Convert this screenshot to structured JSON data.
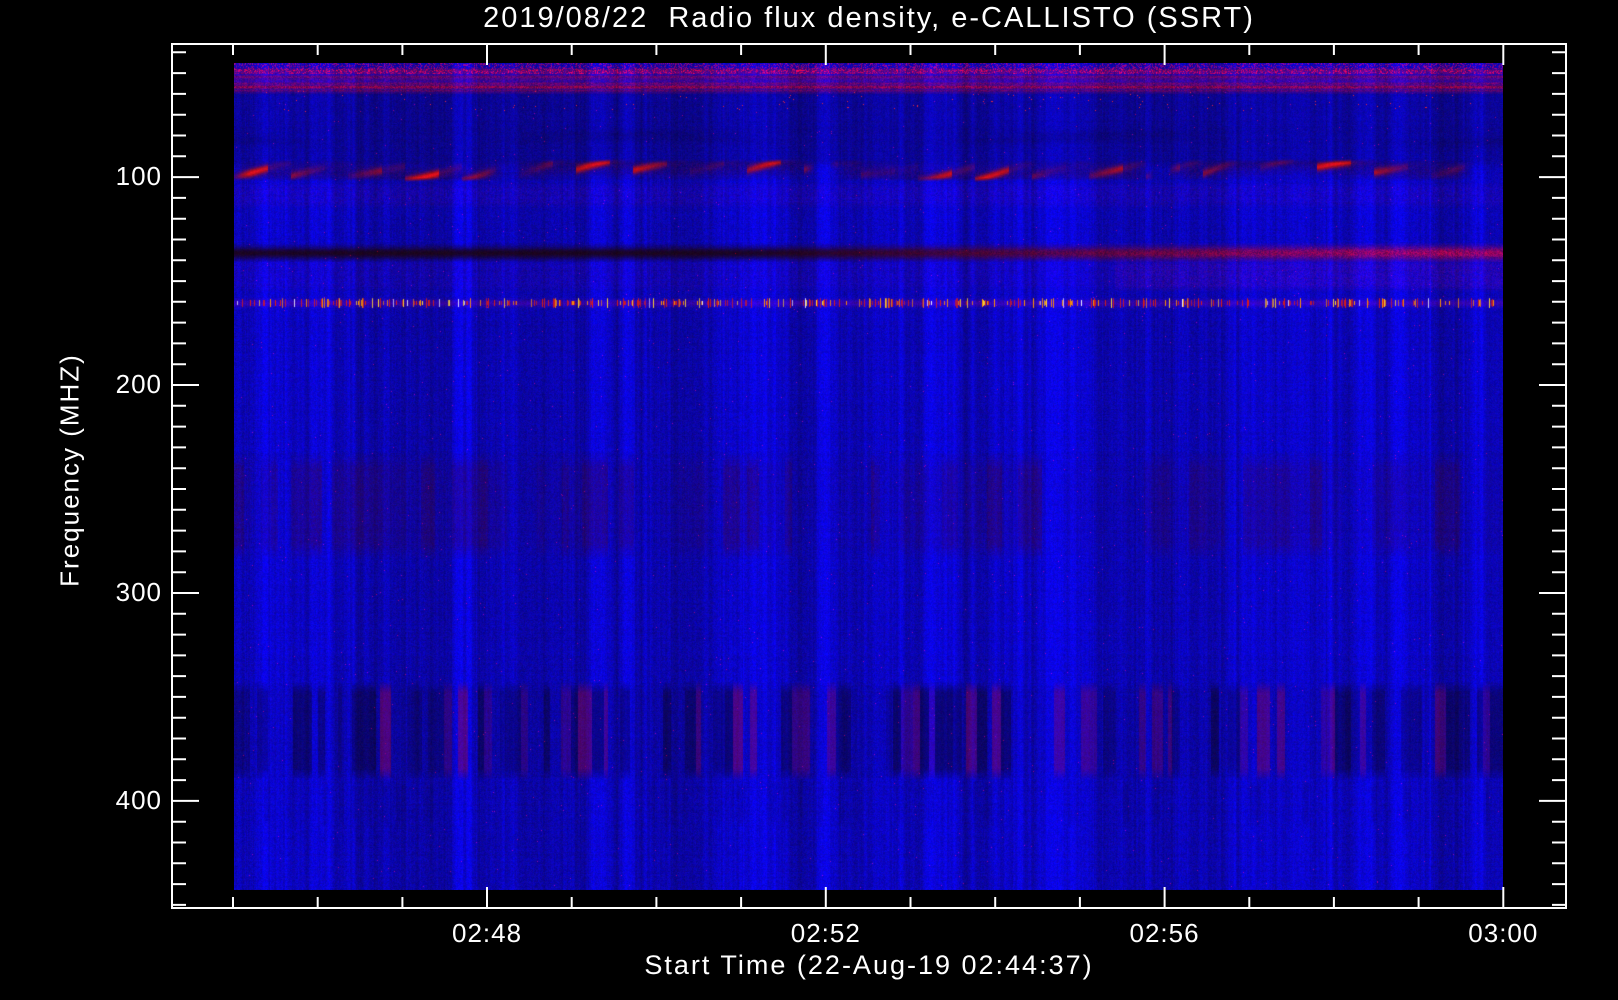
{
  "page": {
    "background": "#000000",
    "foreground": "#ffffff"
  },
  "chart_data": {
    "type": "heatmap",
    "subtype": "solar-radio-spectrogram",
    "title": "2019/08/22  Radio flux density, e-CALLISTO (SSRT)",
    "xlabel": "Start Time (22-Aug-19 02:44:37)",
    "ylabel": "Frequency (MHZ)",
    "legend": "none",
    "grid": "off",
    "x_axis": {
      "unit": "time (UT)",
      "range_minutes": [
        164.28,
        180.74
      ],
      "first_minor_minute": 165,
      "minor_step_minutes": 1,
      "major_ticks": [
        {
          "label": "02:48",
          "minutes": 168
        },
        {
          "label": "02:52",
          "minutes": 172
        },
        {
          "label": "02:56",
          "minutes": 176
        },
        {
          "label": "03:00",
          "minutes": 180
        }
      ]
    },
    "y_axis": {
      "unit": "MHz",
      "direction": "down",
      "range_mhz": [
        36,
        451.5
      ],
      "first_minor_mhz": 40,
      "minor_step_mhz": 10,
      "major_ticks_mhz": [
        100,
        200,
        300,
        400
      ]
    },
    "image": {
      "time_minutes": [
        165.0,
        180.0
      ],
      "freq_mhz": [
        45.1,
        442.8
      ]
    },
    "palette": {
      "background_blue": "#1414e0",
      "navy_stripe": "#000080",
      "deep_red": "#c00000",
      "orange": "#ff9600",
      "yellow": "#ffdc32",
      "white_hot": "#eeeeff"
    },
    "features": [
      {
        "kind": "speckle_rows",
        "freq_mhz": [
          45,
          49
        ],
        "description": "dense red/blue speckled interference rows along top edge"
      },
      {
        "kind": "red_rows",
        "freq_mhz": [
          49,
          58
        ],
        "description": "mottled dark-red horizontal interference streaks"
      },
      {
        "kind": "dark_region",
        "freq_mhz": [
          58,
          92
        ],
        "description": "darker blue zone with fine vertical striping"
      },
      {
        "kind": "red_dots_row",
        "freq_mhz": [
          60,
          67
        ],
        "description": "sparse bright red dots"
      },
      {
        "kind": "faint_arcs",
        "freq_mhz": [
          78,
          85
        ],
        "description": "faint dark undulating arcs"
      },
      {
        "kind": "wavy_line",
        "freq_mhz": [
          93,
          100
        ],
        "center_mhz": 96.5,
        "segments_minutes": [
          [
            165.1,
            168.1
          ],
          [
            168.4,
            171.7
          ],
          [
            172.2,
            175.7
          ],
          [
            176.2,
            179.5
          ]
        ],
        "description": "strong undulating dark-red emission band made of slanted dashes near 95-100 MHz"
      },
      {
        "kind": "purple_rows",
        "freq_mhz": [
          105,
          112
        ],
        "description": "faint purple noise rows"
      },
      {
        "kind": "dark_band",
        "freq_mhz": [
          133,
          139
        ],
        "center_mhz": 136.3,
        "description": "very dark narrow band, nearly black at left, turning dark red toward the right"
      },
      {
        "kind": "purple_rows",
        "freq_mhz": [
          142,
          152
        ],
        "description": "faint red-tinged rows, stronger on right half"
      },
      {
        "kind": "speckle_line",
        "freq_mhz": [
          158,
          163
        ],
        "center_mhz": 160.4,
        "description": "dashed interference line of red/orange/yellow/white ticks across full width"
      },
      {
        "kind": "blotch_band",
        "freq_mhz": [
          240,
          276
        ],
        "description": "faint dark mottled blotches in word-like clusters"
      },
      {
        "kind": "barcode_band",
        "freq_mhz": [
          348,
          384
        ],
        "description": "band of vertical navy and dull-red stripes"
      },
      {
        "kind": "faint_stripes",
        "freq_mhz": [
          393,
          408
        ],
        "description": "very faint dark vertical stripes"
      }
    ]
  }
}
